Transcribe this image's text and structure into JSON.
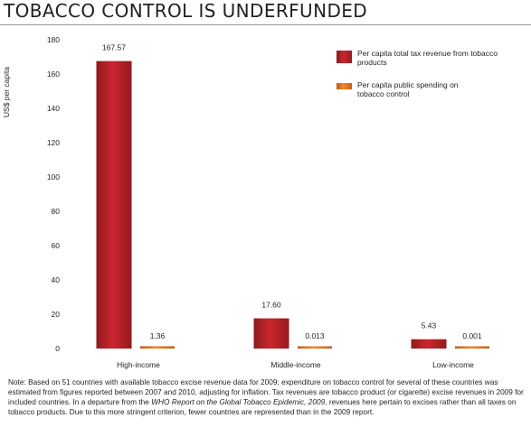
{
  "title": "TOBACCO CONTROL IS UNDERFUNDED",
  "chart_data": {
    "type": "bar",
    "ylabel": "US$ per capita",
    "ylim": [
      0,
      180
    ],
    "yticks": [
      0,
      20,
      40,
      60,
      80,
      100,
      120,
      140,
      160,
      180
    ],
    "categories": [
      "High-income",
      "Middle-income",
      "Low-income"
    ],
    "series": [
      {
        "name": "Per capita total tax revenue from tobacco products",
        "color": "#c1272d",
        "values": [
          167.57,
          17.6,
          5.43
        ],
        "labels": [
          "167.57",
          "17.60",
          "5.43"
        ]
      },
      {
        "name": "Per capita public spending on tobacco control",
        "color": "#e8741e",
        "values": [
          1.36,
          0.013,
          0.001
        ],
        "labels": [
          "1.36",
          "0.013",
          "0.001"
        ]
      }
    ],
    "legend_position": "top-right",
    "grid": false
  },
  "note": {
    "part1": "Note: Based on 51 countries with available tobacco excise revenue data for 2009; expenditure on tobacco control for several of these countries was estimated from figures reported between 2007 and 2010, adjusting for inflation. Tax revenues are tobacco product (or cigarette) excise revenues in 2009 for included countries. In a departure from the ",
    "italic": "WHO Report on the Global Tobacco Epidemic, 2009",
    "part2": ", revenues here pertain to excises rather than all taxes on tobacco products. Due to this more stringent criterion, fewer countries are represented than in the 2009 report."
  }
}
